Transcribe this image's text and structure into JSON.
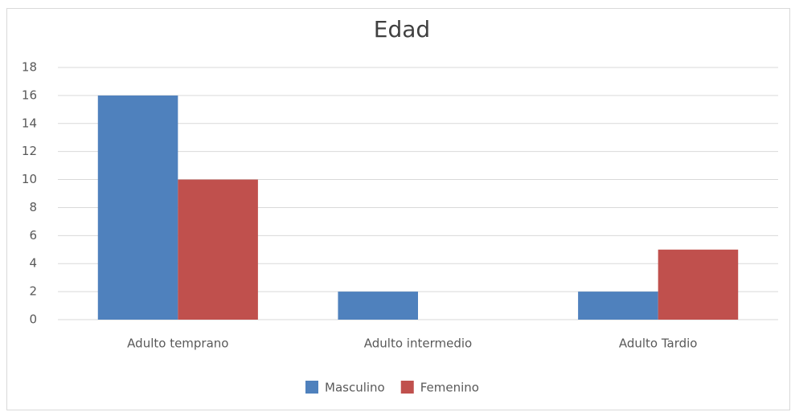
{
  "chart_data": {
    "type": "bar",
    "title": "Edad",
    "categories": [
      "Adulto temprano",
      "Adulto intermedio",
      "Adulto Tardio"
    ],
    "series": [
      {
        "name": "Masculino",
        "color": "#4f81bd",
        "values": [
          16,
          2,
          2
        ]
      },
      {
        "name": "Femenino",
        "color": "#c0504d",
        "values": [
          10,
          0,
          5
        ]
      }
    ],
    "ylim": [
      0,
      18
    ],
    "yticks": [
      0,
      2,
      4,
      6,
      8,
      10,
      12,
      14,
      16,
      18
    ],
    "grid": true,
    "legend": "bottom"
  }
}
